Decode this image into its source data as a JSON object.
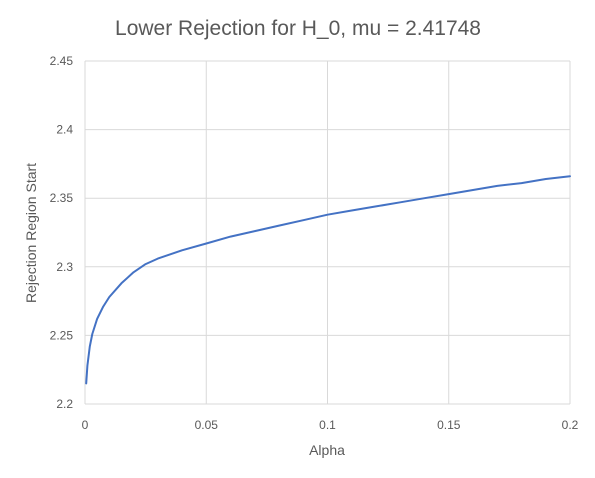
{
  "chart_data": {
    "type": "line",
    "title": "Lower Rejection for H_0, mu = 2.41748",
    "xlabel": "Alpha",
    "ylabel": "Rejection Region Start",
    "xlim": [
      0,
      0.2
    ],
    "ylim": [
      2.2,
      2.45
    ],
    "x_ticks": [
      "0",
      "0.05",
      "0.1",
      "0.15",
      "0.2"
    ],
    "y_ticks": [
      "2.2",
      "2.25",
      "2.3",
      "2.35",
      "2.4",
      "2.45"
    ],
    "grid": true,
    "series_color": "#4472c4",
    "series": [
      {
        "x": [
          0.0005,
          0.001,
          0.002,
          0.003,
          0.005,
          0.0075,
          0.01,
          0.015,
          0.02,
          0.025,
          0.03,
          0.04,
          0.05,
          0.06,
          0.07,
          0.08,
          0.09,
          0.1,
          0.11,
          0.12,
          0.13,
          0.14,
          0.15,
          0.16,
          0.17,
          0.18,
          0.19,
          0.2
        ],
        "y": [
          2.215,
          2.228,
          2.242,
          2.251,
          2.262,
          2.271,
          2.278,
          2.288,
          2.296,
          2.302,
          2.306,
          2.312,
          2.317,
          2.322,
          2.326,
          2.33,
          2.334,
          2.338,
          2.341,
          2.344,
          2.347,
          2.35,
          2.353,
          2.356,
          2.359,
          2.361,
          2.364,
          2.366
        ]
      }
    ]
  }
}
